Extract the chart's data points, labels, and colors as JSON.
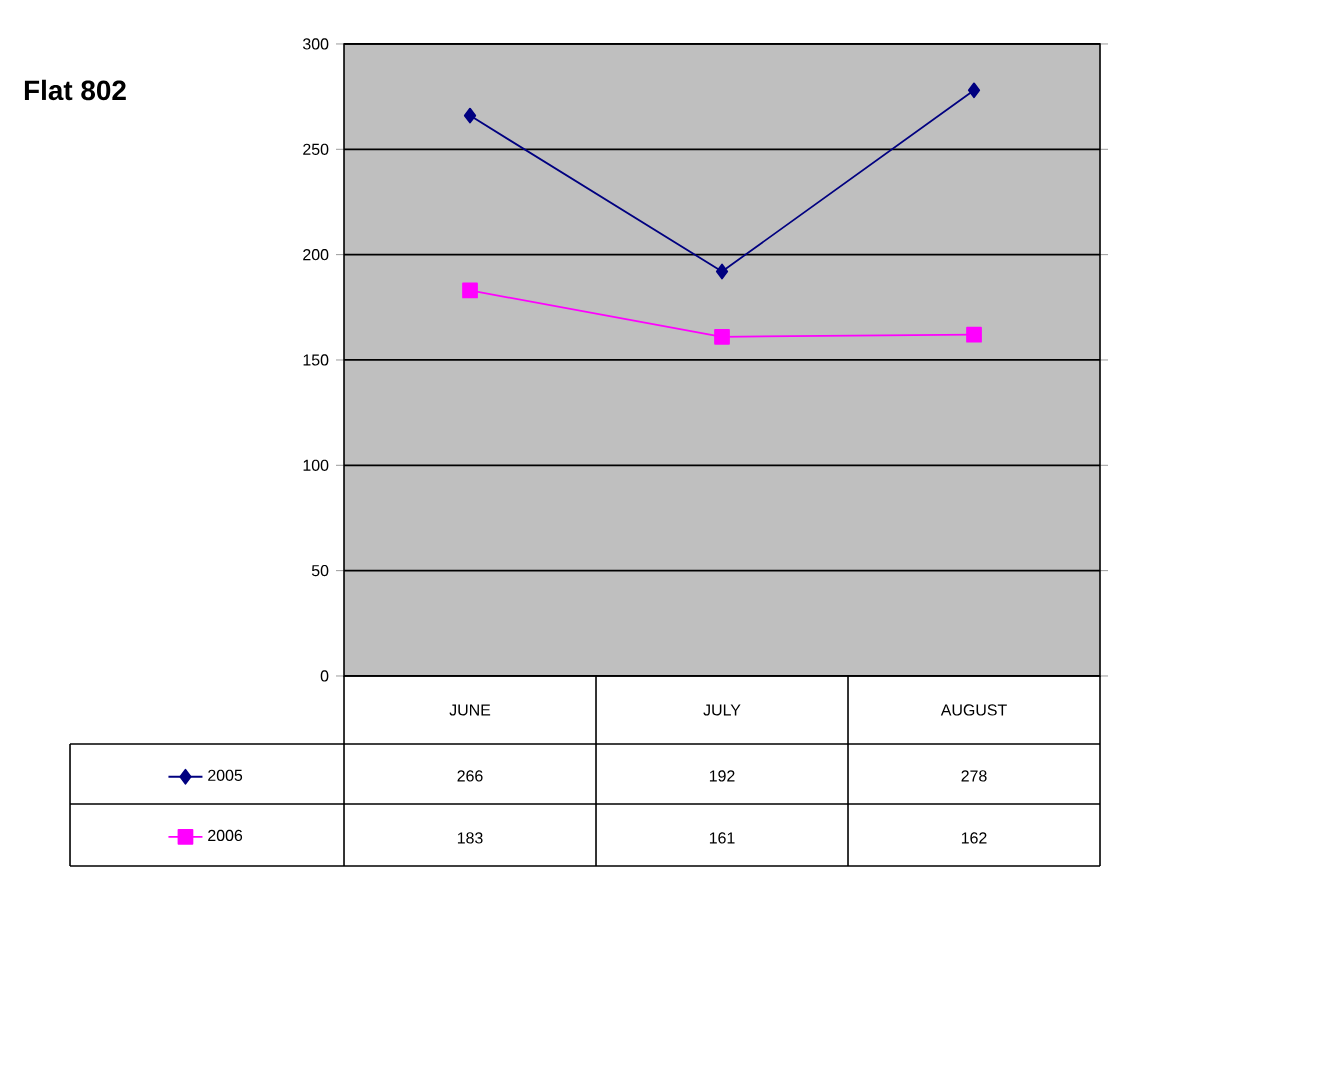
{
  "chart_data": {
    "type": "line",
    "title": "Flat 802",
    "categories": [
      "JUNE",
      "JULY",
      "AUGUST"
    ],
    "series": [
      {
        "name": "2005",
        "color": "#000080",
        "marker": "diamond",
        "values": [
          266,
          192,
          278
        ]
      },
      {
        "name": "2006",
        "color": "#ff00ff",
        "marker": "square",
        "values": [
          183,
          161,
          162
        ]
      }
    ],
    "ylim": [
      0,
      300
    ],
    "yticks": [
      0,
      50,
      100,
      150,
      200,
      250,
      300
    ],
    "grid": "y",
    "legend": "bottom left",
    "data_labels": true
  }
}
